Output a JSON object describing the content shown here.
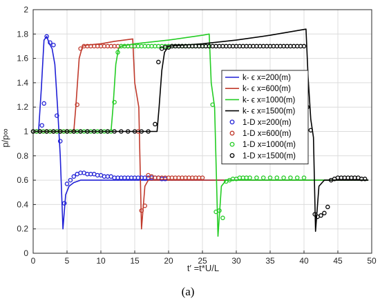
{
  "chart_data": {
    "type": "line",
    "title": "",
    "xlabel": "t′ =t*U/L",
    "ylabel": "p/p∞",
    "xlim": [
      0,
      50
    ],
    "ylim": [
      0,
      2
    ],
    "xticks": [
      0,
      5,
      10,
      15,
      20,
      25,
      30,
      35,
      40,
      45,
      50
    ],
    "yticks": [
      0,
      0.2,
      0.4,
      0.6,
      0.8,
      1,
      1.2,
      1.4,
      1.6,
      1.8,
      2
    ],
    "ytick_labels": [
      "0",
      "0.2",
      "0.4",
      "0.6",
      "0.8",
      "1",
      "1.2",
      "1.4",
      "1.6",
      "1.8",
      "2"
    ],
    "grid": true,
    "legend_position": "right-middle",
    "series": [
      {
        "name": "k- ϵ x=200(m)",
        "style": "line",
        "color": "#1f1fd6",
        "x": [
          0,
          0.8,
          1.2,
          1.6,
          2.0,
          2.4,
          2.8,
          3.2,
          3.6,
          4.0,
          4.4,
          4.8,
          5.3,
          6.0,
          7.0,
          8.0,
          10.0,
          12.0,
          15.0,
          20.0,
          30.0,
          40.0,
          49.5
        ],
        "y": [
          1.0,
          1.0,
          1.35,
          1.75,
          1.78,
          1.72,
          1.68,
          1.55,
          1.2,
          0.8,
          0.2,
          0.48,
          0.55,
          0.58,
          0.6,
          0.6,
          0.6,
          0.6,
          0.6,
          0.6,
          0.6,
          0.6,
          0.6
        ]
      },
      {
        "name": "k- ϵ x=600(m)",
        "style": "line",
        "color": "#c0392b",
        "x": [
          0,
          6.0,
          6.3,
          6.8,
          7.3,
          8.0,
          10.0,
          12.0,
          14.7,
          15.0,
          15.6,
          16.0,
          16.5,
          17.0,
          18.0,
          20.0,
          25.0,
          30.0,
          35.0,
          40.0,
          49.5
        ],
        "y": [
          1.0,
          1.0,
          1.2,
          1.6,
          1.7,
          1.71,
          1.72,
          1.74,
          1.76,
          1.4,
          1.2,
          0.2,
          0.55,
          0.6,
          0.6,
          0.6,
          0.6,
          0.6,
          0.6,
          0.6,
          0.6
        ]
      },
      {
        "name": "k- ϵ x=1000(m)",
        "style": "line",
        "color": "#22cc22",
        "x": [
          0,
          11.5,
          11.8,
          12.2,
          12.6,
          13.0,
          15.0,
          20.0,
          25.0,
          26.0,
          26.3,
          26.8,
          27.3,
          27.8,
          28.5,
          30.0,
          35.0,
          40.0,
          49.5
        ],
        "y": [
          1.0,
          1.0,
          1.2,
          1.55,
          1.68,
          1.7,
          1.72,
          1.75,
          1.79,
          1.8,
          1.4,
          1.2,
          0.14,
          0.55,
          0.6,
          0.6,
          0.6,
          0.6,
          0.6
        ]
      },
      {
        "name": "k- ϵ x=1500(m)",
        "style": "line",
        "color": "#000000",
        "x": [
          0,
          18.3,
          18.6,
          19.0,
          19.4,
          20.0,
          25.0,
          30.0,
          35.0,
          40.3,
          40.6,
          41.0,
          41.4,
          41.7,
          42.2,
          43.0,
          45.0,
          49.5
        ],
        "y": [
          1.0,
          1.0,
          1.2,
          1.5,
          1.65,
          1.7,
          1.72,
          1.75,
          1.79,
          1.84,
          1.45,
          1.1,
          0.95,
          0.18,
          0.55,
          0.6,
          0.6,
          0.6
        ]
      },
      {
        "name": "1-D x=200(m)",
        "style": "markers",
        "color": "#1f1fd6",
        "x": [
          0,
          0.5,
          1.0,
          1.3,
          1.6,
          2.0,
          2.5,
          3.0,
          3.5,
          4.0,
          4.6,
          5.0,
          5.5,
          6.0,
          6.5,
          7.0,
          7.5,
          8.0,
          8.5,
          9.0,
          9.5,
          10.0,
          10.5,
          11.0,
          11.5,
          12.0,
          12.5,
          13.0,
          13.5,
          14.0,
          14.5,
          15.0,
          15.5,
          16.0,
          16.5,
          17.0,
          17.5,
          18.0,
          18.5,
          19.0,
          19.5
        ],
        "y": [
          1.0,
          1.0,
          1.0,
          1.05,
          1.23,
          1.78,
          1.73,
          1.71,
          1.13,
          0.92,
          0.41,
          0.57,
          0.6,
          0.63,
          0.65,
          0.66,
          0.66,
          0.65,
          0.65,
          0.65,
          0.64,
          0.64,
          0.63,
          0.63,
          0.63,
          0.62,
          0.62,
          0.62,
          0.62,
          0.62,
          0.62,
          0.62,
          0.62,
          0.62,
          0.62,
          0.62,
          0.62,
          0.62,
          0.62,
          0.61,
          0.61
        ]
      },
      {
        "name": "1-D x=600(m)",
        "style": "markers",
        "color": "#c0392b",
        "x": [
          0,
          0.5,
          1.0,
          1.5,
          2.0,
          2.5,
          3.0,
          3.5,
          4.0,
          4.5,
          5.0,
          5.5,
          6.0,
          6.5,
          7.0,
          7.5,
          8.0,
          8.5,
          9.0,
          9.5,
          10.0,
          10.5,
          11.0,
          11.5,
          12.0,
          12.5,
          13.0,
          13.5,
          14.0,
          14.5,
          15.0,
          15.5,
          16.0,
          16.5,
          17.0,
          17.5,
          18.0,
          18.5,
          19.0,
          19.5,
          20.0,
          20.5,
          21.0,
          21.5,
          22.0,
          22.5,
          23.0,
          23.5,
          24.0,
          24.5,
          25.0
        ],
        "y": [
          1.0,
          1.0,
          1.0,
          1.0,
          1.0,
          1.0,
          1.0,
          1.0,
          1.0,
          1.0,
          1.0,
          1.0,
          1.0,
          1.22,
          1.68,
          1.7,
          1.7,
          1.7,
          1.7,
          1.7,
          1.7,
          1.7,
          1.7,
          1.7,
          1.7,
          1.7,
          1.7,
          1.7,
          1.7,
          1.7,
          1.7,
          1.0,
          0.35,
          0.39,
          0.64,
          0.63,
          0.62,
          0.62,
          0.62,
          0.62,
          0.62,
          0.62,
          0.62,
          0.62,
          0.62,
          0.62,
          0.62,
          0.62,
          0.62,
          0.62,
          0.62
        ]
      },
      {
        "name": "1-D x=1000(m)",
        "style": "markers",
        "color": "#22cc22",
        "x": [
          0,
          0.5,
          1.0,
          1.5,
          2.0,
          2.5,
          3.0,
          3.5,
          4.0,
          4.5,
          5.0,
          5.5,
          6.0,
          6.5,
          7.0,
          7.5,
          8.0,
          8.5,
          9.0,
          9.5,
          10.0,
          10.5,
          11.0,
          11.5,
          12.0,
          12.5,
          13.0,
          13.5,
          14.0,
          14.5,
          15.0,
          15.5,
          16.0,
          16.5,
          17.0,
          17.5,
          18.0,
          18.5,
          19.0,
          19.5,
          20.0,
          20.5,
          21.0,
          21.5,
          22.0,
          22.5,
          23.0,
          23.5,
          24.0,
          24.5,
          25.0,
          25.5,
          26.0,
          26.5,
          27.0,
          27.5,
          28.0,
          28.5,
          29.0,
          29.5,
          30.0,
          30.5,
          31.0,
          31.5,
          32.0,
          33.0,
          34.0,
          35.0,
          36.0,
          37.0,
          38.0,
          39.0,
          40.0
        ],
        "y": [
          1.0,
          1.0,
          1.0,
          1.0,
          1.0,
          1.0,
          1.0,
          1.0,
          1.0,
          1.0,
          1.0,
          1.0,
          1.0,
          1.0,
          1.0,
          1.0,
          1.0,
          1.0,
          1.0,
          1.0,
          1.0,
          1.0,
          1.0,
          1.0,
          1.24,
          1.65,
          1.7,
          1.7,
          1.7,
          1.7,
          1.7,
          1.7,
          1.7,
          1.7,
          1.7,
          1.7,
          1.7,
          1.7,
          1.7,
          1.7,
          1.7,
          1.7,
          1.7,
          1.7,
          1.7,
          1.7,
          1.7,
          1.7,
          1.7,
          1.7,
          1.7,
          1.7,
          1.7,
          1.22,
          0.34,
          0.35,
          0.29,
          0.59,
          0.6,
          0.61,
          0.61,
          0.62,
          0.62,
          0.62,
          0.62,
          0.62,
          0.62,
          0.62,
          0.62,
          0.62,
          0.62,
          0.62,
          0.62
        ]
      },
      {
        "name": "1-D x=1500(m)",
        "style": "markers",
        "color": "#000000",
        "x": [
          0,
          1,
          2,
          3,
          4,
          5,
          6,
          7,
          8,
          9,
          10,
          11,
          12,
          13,
          14,
          15,
          16,
          17,
          18.0,
          18.5,
          19.0,
          19.5,
          20.0,
          20.5,
          21.0,
          21.5,
          22.0,
          22.5,
          23.0,
          23.5,
          24.0,
          24.5,
          25.0,
          25.5,
          26.0,
          26.5,
          27.0,
          27.5,
          28.0,
          28.5,
          29.0,
          29.5,
          30.0,
          30.5,
          31.0,
          31.5,
          32.0,
          32.5,
          33.0,
          33.5,
          34.0,
          34.5,
          35.0,
          35.5,
          36.0,
          36.5,
          37.0,
          37.5,
          38.0,
          38.5,
          39.0,
          39.5,
          40.0,
          40.5,
          41.0,
          41.6,
          42.0,
          42.5,
          43.0,
          43.5,
          44.0,
          44.5,
          45.0,
          45.5,
          46.0,
          46.5,
          47.0,
          47.5,
          48.0,
          48.5,
          49.0
        ],
        "y": [
          1.0,
          1.0,
          1.0,
          1.0,
          1.0,
          1.0,
          1.0,
          1.0,
          1.0,
          1.0,
          1.0,
          1.0,
          1.0,
          1.0,
          1.0,
          1.0,
          1.0,
          1.0,
          1.06,
          1.57,
          1.68,
          1.69,
          1.69,
          1.7,
          1.7,
          1.7,
          1.7,
          1.7,
          1.7,
          1.7,
          1.7,
          1.7,
          1.7,
          1.7,
          1.7,
          1.7,
          1.7,
          1.7,
          1.7,
          1.7,
          1.7,
          1.7,
          1.7,
          1.7,
          1.7,
          1.7,
          1.7,
          1.7,
          1.7,
          1.7,
          1.7,
          1.7,
          1.7,
          1.7,
          1.7,
          1.7,
          1.7,
          1.7,
          1.7,
          1.7,
          1.7,
          1.7,
          1.7,
          1.2,
          1.01,
          0.32,
          0.3,
          0.31,
          0.33,
          0.38,
          0.6,
          0.61,
          0.62,
          0.62,
          0.62,
          0.62,
          0.62,
          0.62,
          0.62,
          0.61,
          0.61
        ]
      }
    ]
  },
  "caption": "(a)"
}
